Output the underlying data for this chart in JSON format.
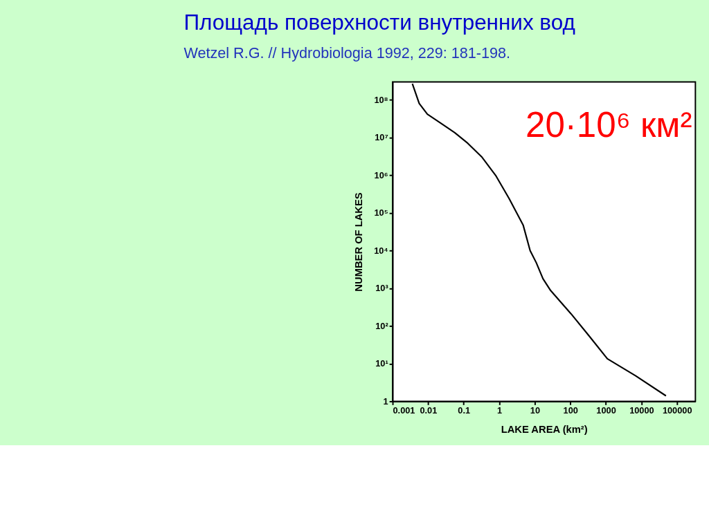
{
  "chart_data": {
    "type": "line",
    "title": "Площадь поверхности внутренних вод",
    "subtitle": "Wetzel R.G. // Hydrobiologia 1992, 229: 181-198.",
    "xlabel": "LAKE AREA (km²)",
    "ylabel": "NUMBER OF LAKES",
    "annotations": [
      "20·10⁶ км²"
    ],
    "log": "xy",
    "grid": false,
    "marker": "none",
    "line_style": "solid",
    "xlim": [
      0.001,
      330000
    ],
    "ylim": [
      1,
      300000000
    ],
    "xticks": [
      0.001,
      0.01,
      0.1,
      1,
      10,
      100,
      1000,
      10000,
      100000
    ],
    "yticks": [
      1,
      {
        "value": 10,
        "label": "10¹"
      },
      {
        "value": 100,
        "label": "10²"
      },
      {
        "value": 1000,
        "label": "10³"
      },
      {
        "value": 10000,
        "label": "10⁴"
      },
      {
        "value": 100000,
        "label": "10⁵"
      },
      {
        "value": 1000000,
        "label": "10⁶"
      },
      {
        "value": 10000000,
        "label": "10⁷"
      },
      {
        "value": 100000000,
        "label": "10⁸"
      }
    ],
    "x": [
      0.0036,
      0.0056,
      0.0095,
      0.023,
      0.056,
      0.13,
      0.33,
      0.79,
      1.9,
      4.7,
      7.4,
      11,
      17,
      28,
      105,
      330,
      1100,
      6800,
      49000
    ],
    "series": [
      {
        "color": "#000000",
        "values": [
          270000000,
          81000000,
          42000000,
          24000000,
          13500000,
          7100000,
          3000000,
          1000000,
          240000,
          48000,
          10000,
          4800,
          1800,
          870,
          210,
          56,
          13.5,
          4.8,
          1.4
        ]
      }
    ]
  }
}
